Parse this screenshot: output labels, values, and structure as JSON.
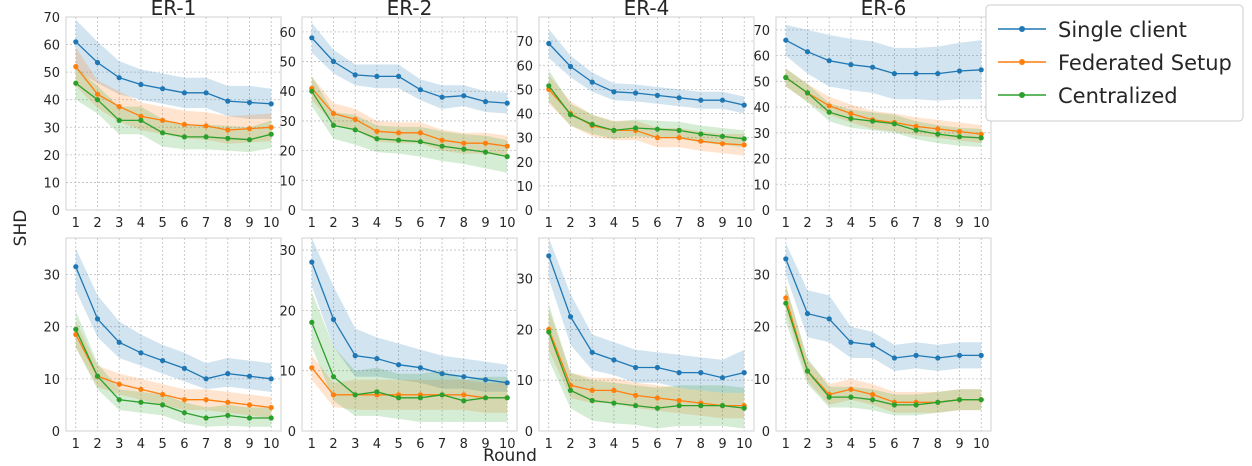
{
  "figure": {
    "ylabel": "SHD",
    "xlabel": "Round"
  },
  "legend": {
    "placement": "right",
    "entries": [
      {
        "label": "Single client",
        "color": "#1f77b4"
      },
      {
        "label": "Federated Setup",
        "color": "#ff7f0e"
      },
      {
        "label": "Centralized",
        "color": "#2ca02c"
      }
    ]
  },
  "chart_data": [
    {
      "type": "line",
      "title": "ER-1",
      "ylim": [
        0,
        70
      ],
      "yticks": [
        0,
        10,
        20,
        30,
        40,
        50,
        60,
        70
      ],
      "grid": true,
      "x": [
        1,
        2,
        3,
        4,
        5,
        6,
        7,
        8,
        9,
        10
      ],
      "series": [
        {
          "name": "Single client",
          "color": "#1f77b4",
          "values": [
            61,
            53.5,
            48,
            45.5,
            44,
            42.5,
            42.5,
            39.5,
            39,
            38.5
          ],
          "band_lower": [
            51,
            46,
            42,
            40,
            38.5,
            37,
            37,
            34,
            33,
            33
          ],
          "band_upper": [
            69,
            61,
            54,
            51,
            49.5,
            48,
            48,
            45,
            45,
            44
          ]
        },
        {
          "name": "Federated Setup",
          "color": "#ff7f0e",
          "values": [
            52,
            42,
            37.5,
            34,
            32.5,
            31,
            30.5,
            29,
            29.5,
            30
          ],
          "band_lower": [
            45,
            37,
            32,
            29,
            27.5,
            26,
            25.5,
            24,
            24.5,
            25
          ],
          "band_upper": [
            59,
            47,
            43,
            39,
            37.5,
            36,
            35.5,
            34,
            34.5,
            35
          ]
        },
        {
          "name": "Centralized",
          "color": "#2ca02c",
          "values": [
            46,
            40,
            32.5,
            32.5,
            28,
            26.5,
            26.5,
            26,
            25.5,
            27.5
          ],
          "band_lower": [
            40,
            35,
            27.5,
            27.5,
            23,
            22,
            22,
            21.5,
            21,
            22.5
          ],
          "band_upper": [
            52,
            45,
            37.5,
            37.5,
            33,
            31,
            31,
            30.5,
            30,
            32.5
          ]
        }
      ]
    },
    {
      "type": "line",
      "title": "ER-2",
      "ylim": [
        0,
        65
      ],
      "yticks": [
        0,
        10,
        20,
        30,
        40,
        50,
        60
      ],
      "grid": true,
      "x": [
        1,
        2,
        3,
        4,
        5,
        6,
        7,
        8,
        9,
        10
      ],
      "series": [
        {
          "name": "Single client",
          "color": "#1f77b4",
          "values": [
            58,
            50,
            45.5,
            45,
            45,
            40.5,
            38,
            38.5,
            36.5,
            36
          ],
          "band_lower": [
            53,
            46,
            42,
            41,
            41,
            37,
            34,
            35,
            33,
            32.5
          ],
          "band_upper": [
            63,
            54,
            49,
            49,
            49,
            44,
            42,
            42,
            40,
            39.5
          ]
        },
        {
          "name": "Federated Setup",
          "color": "#ff7f0e",
          "values": [
            41,
            32.5,
            30.5,
            26.5,
            26,
            26,
            23.5,
            22.5,
            22.5,
            21.5
          ],
          "band_lower": [
            37,
            29,
            27,
            23,
            22.5,
            22.5,
            20,
            19,
            19,
            18
          ],
          "band_upper": [
            45,
            36,
            34,
            30,
            29.5,
            29.5,
            27,
            26,
            26,
            25
          ]
        },
        {
          "name": "Centralized",
          "color": "#2ca02c",
          "values": [
            40,
            28.5,
            27,
            24,
            23.5,
            23,
            21.5,
            20.5,
            19.5,
            18
          ],
          "band_lower": [
            35,
            24,
            22,
            19.5,
            19,
            18,
            16.5,
            15.5,
            14,
            12.5
          ],
          "band_upper": [
            45,
            33,
            32,
            28.5,
            28,
            28,
            26.5,
            25.5,
            25,
            23.5
          ]
        }
      ]
    },
    {
      "type": "line",
      "title": "ER-4",
      "ylim": [
        0,
        80
      ],
      "yticks": [
        0,
        10,
        20,
        30,
        40,
        50,
        60,
        70
      ],
      "grid": true,
      "x": [
        1,
        2,
        3,
        4,
        5,
        6,
        7,
        8,
        9,
        10
      ],
      "series": [
        {
          "name": "Single client",
          "color": "#1f77b4",
          "values": [
            69,
            59.5,
            53,
            49,
            48.5,
            47.5,
            46.5,
            45.5,
            45.5,
            43.5
          ],
          "band_lower": [
            63,
            55,
            49,
            45.5,
            45,
            44,
            43,
            42,
            42,
            40
          ],
          "band_upper": [
            75,
            64,
            57,
            52.5,
            52,
            51,
            50,
            49,
            49,
            47
          ]
        },
        {
          "name": "Federated Setup",
          "color": "#ff7f0e",
          "values": [
            50,
            40,
            35,
            33,
            33,
            30,
            30,
            28.5,
            27.5,
            27
          ],
          "band_lower": [
            44,
            35,
            30.5,
            29,
            29,
            26,
            26,
            24.5,
            23.5,
            22.5
          ],
          "band_upper": [
            56,
            45,
            39.5,
            37,
            37,
            34,
            34,
            32.5,
            31.5,
            31.5
          ]
        },
        {
          "name": "Centralized",
          "color": "#2ca02c",
          "values": [
            51.5,
            39.5,
            35.5,
            33,
            34,
            33.5,
            33,
            31.5,
            30.5,
            29.5
          ],
          "band_lower": [
            45,
            35,
            31.5,
            29.5,
            30.5,
            30,
            29.5,
            28,
            27,
            26
          ],
          "band_upper": [
            58,
            44,
            39.5,
            36.5,
            37.5,
            37,
            36.5,
            35,
            34,
            33
          ]
        }
      ]
    },
    {
      "type": "line",
      "title": "ER-6",
      "ylim": [
        0,
        75
      ],
      "yticks": [
        0,
        10,
        20,
        30,
        40,
        50,
        60,
        70
      ],
      "grid": true,
      "x": [
        1,
        2,
        3,
        4,
        5,
        6,
        7,
        8,
        9,
        10
      ],
      "series": [
        {
          "name": "Single client",
          "color": "#1f77b4",
          "values": [
            66,
            61.5,
            58,
            56.5,
            55.5,
            53,
            53,
            53,
            54,
            54.5
          ],
          "band_lower": [
            60,
            53,
            48,
            46.5,
            45.5,
            43,
            43,
            42.5,
            43,
            43
          ],
          "band_upper": [
            72,
            70,
            68,
            66.5,
            65.5,
            63,
            63,
            63.5,
            65,
            66
          ]
        },
        {
          "name": "Federated Setup",
          "color": "#ff7f0e",
          "values": [
            51.5,
            45.5,
            40.5,
            37.5,
            35,
            34,
            32.5,
            31.5,
            30.5,
            29.5
          ],
          "band_lower": [
            48,
            42,
            37,
            34,
            31.5,
            30.5,
            29,
            28,
            27,
            26
          ],
          "band_upper": [
            55,
            49,
            44,
            41,
            38.5,
            37.5,
            36,
            35,
            34,
            33
          ]
        },
        {
          "name": "Centralized",
          "color": "#2ca02c",
          "values": [
            51.5,
            45.5,
            38,
            35.5,
            34.5,
            33.5,
            31,
            29.5,
            28.5,
            28
          ],
          "band_lower": [
            48,
            42,
            34.5,
            32,
            31,
            30,
            27.5,
            26,
            25,
            24.5
          ],
          "band_upper": [
            55,
            49,
            41.5,
            39,
            38,
            37,
            34.5,
            33,
            32,
            31.5
          ]
        }
      ]
    },
    {
      "type": "line",
      "title": "",
      "ylim": [
        0,
        37
      ],
      "yticks": [
        0,
        10,
        20,
        30
      ],
      "grid": true,
      "x": [
        1,
        2,
        3,
        4,
        5,
        6,
        7,
        8,
        9,
        10
      ],
      "series": [
        {
          "name": "Single client",
          "color": "#1f77b4",
          "values": [
            31.5,
            21.5,
            17,
            15,
            13.5,
            12,
            10,
            11,
            10.5,
            10
          ],
          "band_lower": [
            27,
            18,
            14,
            12.5,
            11,
            9.5,
            8,
            8.5,
            8,
            7.5
          ],
          "band_upper": [
            35,
            26,
            21,
            18.5,
            16.5,
            15,
            13,
            14,
            13.5,
            13
          ]
        },
        {
          "name": "Federated Setup",
          "color": "#ff7f0e",
          "values": [
            18.5,
            10.5,
            9,
            8,
            7,
            6,
            6,
            5.5,
            5,
            4.5
          ],
          "band_lower": [
            16,
            8.5,
            7,
            6,
            5,
            4,
            4,
            3.5,
            3,
            2.5
          ],
          "band_upper": [
            21,
            12.5,
            11,
            10,
            9,
            8,
            8,
            7.5,
            7,
            6.5
          ]
        },
        {
          "name": "Centralized",
          "color": "#2ca02c",
          "values": [
            19.5,
            10.5,
            6,
            5.5,
            5,
            3.5,
            2.5,
            3,
            2.5,
            2.5
          ],
          "band_lower": [
            16,
            8,
            4,
            3.5,
            3,
            1.5,
            0.8,
            1,
            0.8,
            0.8
          ],
          "band_upper": [
            23,
            13,
            8,
            7.5,
            7,
            5.5,
            4.5,
            5,
            4.5,
            4.5
          ]
        }
      ]
    },
    {
      "type": "line",
      "title": "",
      "ylim": [
        0,
        32
      ],
      "yticks": [
        0,
        10,
        20,
        30
      ],
      "grid": true,
      "x": [
        1,
        2,
        3,
        4,
        5,
        6,
        7,
        8,
        9,
        10
      ],
      "series": [
        {
          "name": "Single client",
          "color": "#1f77b4",
          "values": [
            28,
            18.5,
            12.5,
            12,
            11,
            10.5,
            9.5,
            9,
            8.5,
            8
          ],
          "band_lower": [
            24,
            14,
            9,
            9,
            8.5,
            8,
            7,
            7,
            6.5,
            6.5
          ],
          "band_upper": [
            32,
            24,
            17,
            15.5,
            14.5,
            13.5,
            12.5,
            12,
            11.5,
            11
          ]
        },
        {
          "name": "Federated Setup",
          "color": "#ff7f0e",
          "values": [
            10.5,
            6,
            6,
            6,
            6,
            6,
            6,
            6,
            5.5,
            5.5
          ],
          "band_lower": [
            8.5,
            4,
            3.5,
            3.5,
            3.5,
            3.5,
            3.5,
            3.5,
            3,
            3
          ],
          "band_upper": [
            12.5,
            8,
            8.5,
            8.5,
            8.5,
            8.5,
            8.5,
            8.5,
            8,
            8
          ]
        },
        {
          "name": "Centralized",
          "color": "#2ca02c",
          "values": [
            18,
            9,
            6,
            6.5,
            5.5,
            5.5,
            6,
            5,
            5.5,
            5.5
          ],
          "band_lower": [
            14,
            5,
            2.5,
            2.5,
            2,
            1.5,
            1.5,
            1.5,
            1.5,
            1.5
          ],
          "band_upper": [
            23,
            14,
            10,
            10.5,
            9.5,
            9.5,
            10,
            8.5,
            9,
            9
          ]
        }
      ]
    },
    {
      "type": "line",
      "title": "",
      "ylim": [
        0,
        38
      ],
      "yticks": [
        0,
        10,
        20,
        30
      ],
      "grid": true,
      "x": [
        1,
        2,
        3,
        4,
        5,
        6,
        7,
        8,
        9,
        10
      ],
      "series": [
        {
          "name": "Single client",
          "color": "#1f77b4",
          "values": [
            34.5,
            22.5,
            15.5,
            14,
            12.5,
            12.5,
            11.5,
            11.5,
            10.5,
            11.5
          ],
          "band_lower": [
            30,
            17,
            12,
            11,
            9.5,
            9.5,
            8.5,
            8,
            7.5,
            7.5
          ],
          "band_upper": [
            38,
            27,
            19,
            17.5,
            16,
            15.5,
            15,
            14.5,
            14,
            16
          ]
        },
        {
          "name": "Federated Setup",
          "color": "#ff7f0e",
          "values": [
            20,
            9,
            8,
            8,
            7,
            6.5,
            6,
            5.5,
            5,
            5
          ],
          "band_lower": [
            16,
            6.5,
            5.5,
            5.5,
            4.5,
            4,
            3.5,
            3,
            2.5,
            2.5
          ],
          "band_upper": [
            24,
            11.5,
            10.5,
            10.5,
            9.5,
            9,
            8.5,
            8,
            7.5,
            7.5
          ]
        },
        {
          "name": "Centralized",
          "color": "#2ca02c",
          "values": [
            19.5,
            8,
            6,
            5.5,
            5,
            4.5,
            5,
            5,
            5,
            4.5
          ],
          "band_lower": [
            14,
            4.5,
            2,
            1.5,
            1.2,
            0.5,
            1,
            1,
            1,
            0.5
          ],
          "band_upper": [
            25,
            11.5,
            10,
            9.5,
            9,
            8.5,
            9,
            9,
            9,
            8.5
          ]
        }
      ]
    },
    {
      "type": "line",
      "title": "",
      "ylim": [
        0,
        37
      ],
      "yticks": [
        0,
        10,
        20,
        30
      ],
      "grid": true,
      "x": [
        1,
        2,
        3,
        4,
        5,
        6,
        7,
        8,
        9,
        10
      ],
      "series": [
        {
          "name": "Single client",
          "color": "#1f77b4",
          "values": [
            33,
            22.5,
            21.5,
            17,
            16.5,
            14,
            14.5,
            14,
            14.5,
            14.5
          ],
          "band_lower": [
            30,
            18,
            17,
            14,
            14,
            11.5,
            12,
            11.5,
            12,
            12
          ],
          "band_upper": [
            36,
            27,
            26,
            20,
            19,
            16.5,
            17,
            16.5,
            17,
            17
          ]
        },
        {
          "name": "Federated Setup",
          "color": "#ff7f0e",
          "values": [
            25.5,
            11.5,
            7,
            8,
            7,
            5.5,
            5.5,
            5.5,
            6,
            6
          ],
          "band_lower": [
            23,
            9.5,
            5,
            6,
            5,
            3.5,
            3.5,
            3.5,
            4,
            4
          ],
          "band_upper": [
            28,
            13.5,
            9,
            10,
            9,
            7.5,
            7.5,
            7.5,
            8,
            8
          ]
        },
        {
          "name": "Centralized",
          "color": "#2ca02c",
          "values": [
            24.5,
            11.5,
            6.5,
            6.5,
            6,
            5,
            5,
            5.5,
            6,
            6
          ],
          "band_lower": [
            21,
            9,
            4.5,
            4.5,
            4,
            3,
            3,
            3.5,
            4,
            4
          ],
          "band_upper": [
            28,
            14,
            8.5,
            8.5,
            8,
            7,
            7,
            7.5,
            8,
            8
          ]
        }
      ]
    }
  ]
}
